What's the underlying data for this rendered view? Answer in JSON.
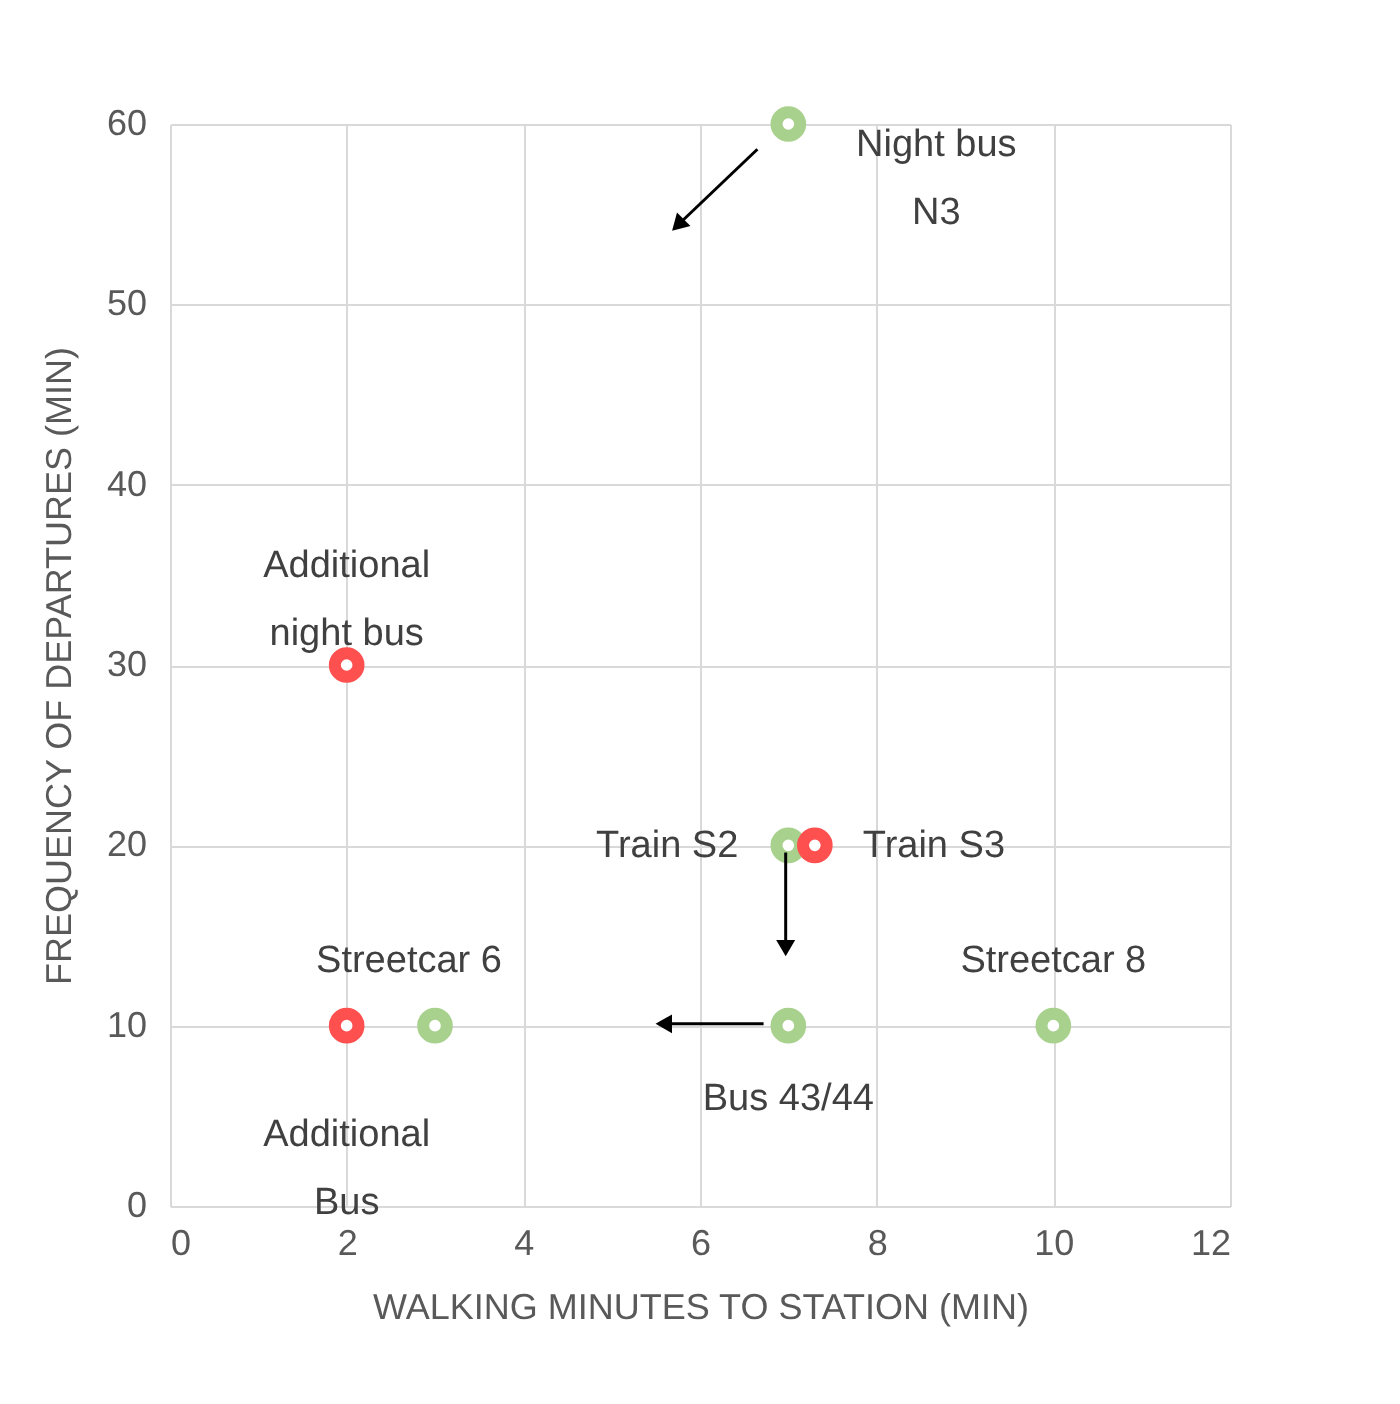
{
  "chart_data": {
    "type": "scatter",
    "xlabel": "WALKING MINUTES TO STATION (MIN)",
    "ylabel": "FREQUENCY OF DEPARTURES (MIN)",
    "xlim": [
      0,
      12
    ],
    "xticks": [
      0,
      2,
      4,
      6,
      8,
      10,
      12
    ],
    "ylim": [
      0,
      60
    ],
    "yticks": [
      0,
      10,
      20,
      30,
      40,
      50,
      60
    ],
    "grid": true,
    "marker": "circle",
    "series": [
      {
        "color": "#a9d18e",
        "x": [
          7,
          7,
          3,
          7,
          10
        ],
        "values": [
          60,
          20,
          10,
          10,
          10
        ]
      },
      {
        "color": "#ff5050",
        "x": [
          2,
          7.3,
          2
        ],
        "values": [
          30,
          20,
          10
        ]
      }
    ],
    "annotations": [
      {
        "text": "Night bus\nN3",
        "x": 7,
        "y": 60
      },
      {
        "text": "Additional\nnight bus",
        "x": 2,
        "y": 30
      },
      {
        "text": "Train S2",
        "x": 7,
        "y": 20
      },
      {
        "text": "Train S3",
        "x": 7.3,
        "y": 20
      },
      {
        "text": "Streetcar 6",
        "x": 3,
        "y": 10
      },
      {
        "text": "Additional\nBus",
        "x": 2,
        "y": 10
      },
      {
        "text": "Bus 43/44",
        "x": 7,
        "y": 10
      },
      {
        "text": "Streetcar 8",
        "x": 10,
        "y": 10
      }
    ]
  }
}
